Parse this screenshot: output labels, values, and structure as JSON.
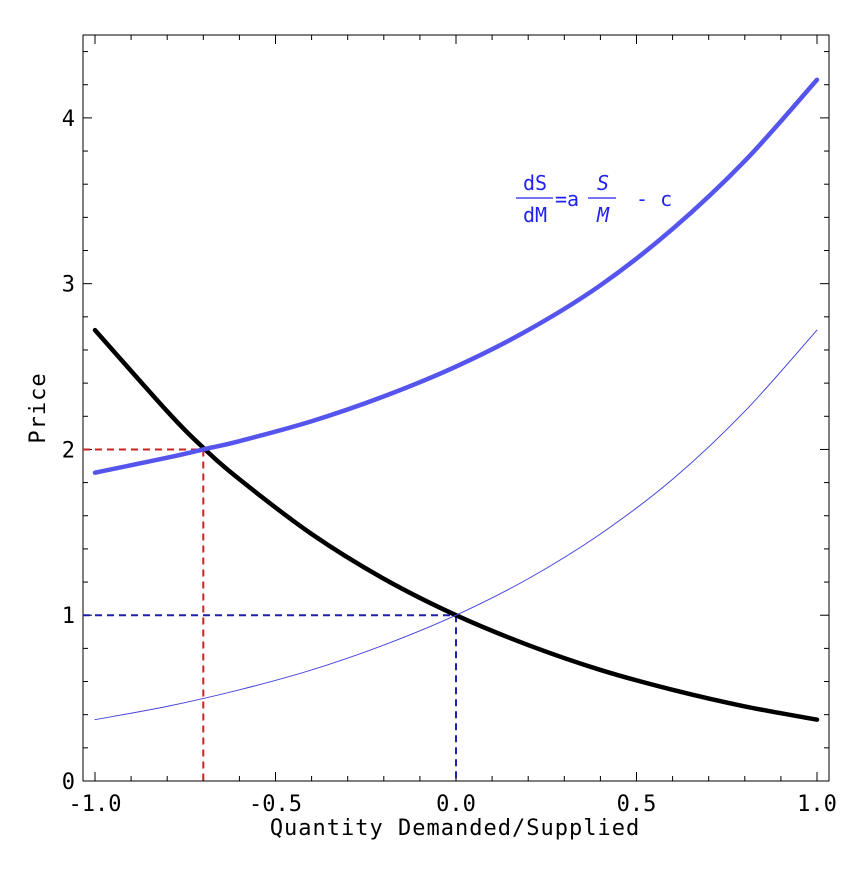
{
  "chart_data": {
    "type": "line",
    "xlabel": "Quantity Demanded/Supplied",
    "ylabel": "Price",
    "xlim": [
      -1.0,
      1.0
    ],
    "ylim": [
      0,
      4.5
    ],
    "x_ticks": [
      -1.0,
      -0.5,
      0.0,
      0.5,
      1.0
    ],
    "x_tick_labels": [
      "-1.0",
      "-0.5",
      "0.0",
      "0.5",
      "1.0"
    ],
    "y_ticks": [
      0,
      1,
      2,
      3,
      4
    ],
    "y_tick_labels": [
      "0",
      "1",
      "2",
      "3",
      "4"
    ],
    "grid": false,
    "series": [
      {
        "key": "demand",
        "color": "#000000",
        "style": "thick",
        "x": [
          -1.0,
          -0.8,
          -0.7,
          -0.6,
          -0.4,
          -0.2,
          0.0,
          0.2,
          0.4,
          0.6,
          0.8,
          1.0
        ],
        "y": [
          2.72,
          2.23,
          2.01,
          1.82,
          1.49,
          1.22,
          1.0,
          0.82,
          0.67,
          0.55,
          0.45,
          0.37
        ]
      },
      {
        "key": "supply_shifted",
        "color": "#5555ee",
        "style": "thick",
        "x": [
          -1.0,
          -0.8,
          -0.7,
          -0.6,
          -0.4,
          -0.2,
          0.0,
          0.2,
          0.4,
          0.6,
          0.8,
          1.0
        ],
        "y": [
          1.86,
          1.95,
          2.0,
          2.05,
          2.17,
          2.32,
          2.5,
          2.72,
          2.99,
          3.33,
          3.74,
          4.23
        ]
      },
      {
        "key": "supply_original",
        "color": "#4444dd",
        "style": "thin",
        "x": [
          -1.0,
          -0.8,
          -0.6,
          -0.4,
          -0.2,
          0.0,
          0.2,
          0.4,
          0.6,
          0.8,
          1.0
        ],
        "y": [
          0.37,
          0.45,
          0.55,
          0.67,
          0.82,
          1.0,
          1.22,
          1.49,
          1.82,
          2.23,
          2.72
        ]
      }
    ],
    "reference_lines": [
      {
        "key": "eq_shifted",
        "color": "#cc2222",
        "x": -0.7,
        "y": 2.0
      },
      {
        "key": "eq_original",
        "color": "#1f1fa8",
        "x": 0.0,
        "y": 1.0
      }
    ],
    "annotation": {
      "frac1_num": "dS",
      "frac1_den": "dM",
      "eq_sign": "=a",
      "frac2_num": "S",
      "frac2_den": "M",
      "tail": "- c",
      "color": "#2222ee"
    }
  }
}
